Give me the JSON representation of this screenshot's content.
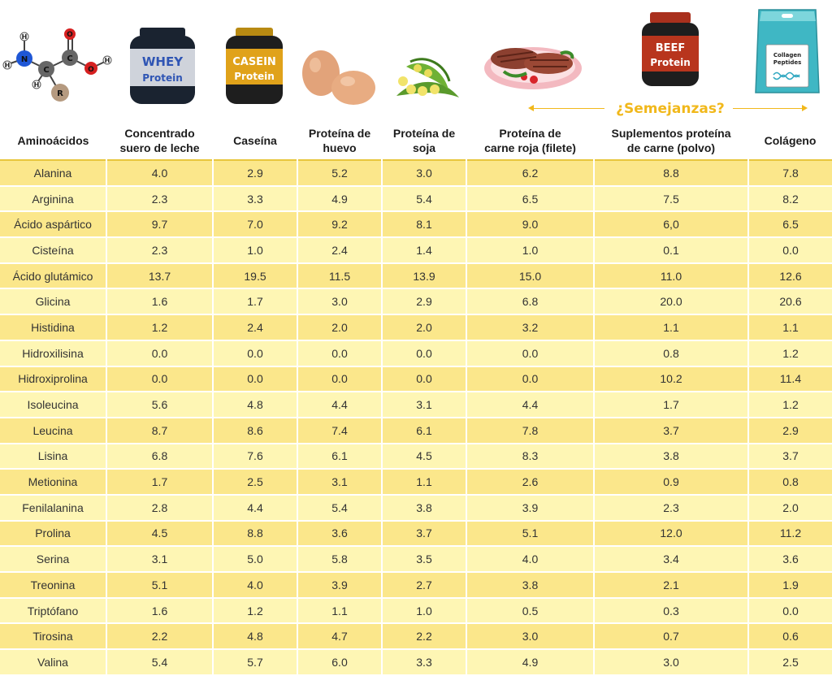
{
  "labels": {
    "whey_jar": [
      "WHEY",
      "Protein"
    ],
    "casein_jar": [
      "CASEIN",
      "Protein"
    ],
    "beef_jar": [
      "BEEF",
      "Protein"
    ],
    "collagen_bag": [
      "Collagen",
      "Peptides"
    ],
    "molecule": [
      "H",
      "N",
      "H",
      "C",
      "H",
      "R",
      "O",
      "C",
      "O",
      "H"
    ],
    "similarities": "¿Semejanzas?"
  },
  "colors": {
    "highlight": "#f1b81b",
    "row_dark": "#fbe78b",
    "row_light": "#fef6b4"
  },
  "chart_data": {
    "type": "table",
    "columns": [
      "Aminoácidos",
      "Concentrado suero de leche",
      "Caseína",
      "Proteína de huevo",
      "Proteína de soja",
      "Proteína de carne roja (filete)",
      "Suplementos proteína de carne (polvo)",
      "Colágeno"
    ],
    "rows": [
      [
        "Alanina",
        "4.0",
        "2.9",
        "5.2",
        "3.0",
        "6.2",
        "8.8",
        "7.8"
      ],
      [
        "Arginina",
        "2.3",
        "3.3",
        "4.9",
        "5.4",
        "6.5",
        "7.5",
        "8.2"
      ],
      [
        "Ácido aspártico",
        "9.7",
        "7.0",
        "9.2",
        "8.1",
        "9.0",
        "6,0",
        "6.5"
      ],
      [
        "Cisteína",
        "2.3",
        "1.0",
        "2.4",
        "1.4",
        "1.0",
        "0.1",
        "0.0"
      ],
      [
        "Ácido glutámico",
        "13.7",
        "19.5",
        "11.5",
        "13.9",
        "15.0",
        "11.0",
        "12.6"
      ],
      [
        "Glicina",
        "1.6",
        "1.7",
        "3.0",
        "2.9",
        "6.8",
        "20.0",
        "20.6"
      ],
      [
        "Histidina",
        "1.2",
        "2.4",
        "2.0",
        "2.0",
        "3.2",
        "1.1",
        "1.1"
      ],
      [
        "Hidroxilisina",
        "0.0",
        "0.0",
        "0.0",
        "0.0",
        "0.0",
        "0.8",
        "1.2"
      ],
      [
        "Hidroxiprolina",
        "0.0",
        "0.0",
        "0.0",
        "0.0",
        "0.0",
        "10.2",
        "11.4"
      ],
      [
        "Isoleucina",
        "5.6",
        "4.8",
        "4.4",
        "3.1",
        "4.4",
        "1.7",
        "1.2"
      ],
      [
        "Leucina",
        "8.7",
        "8.6",
        "7.4",
        "6.1",
        "7.8",
        "3.7",
        "2.9"
      ],
      [
        "Lisina",
        "6.8",
        "7.6",
        "6.1",
        "4.5",
        "8.3",
        "3.8",
        "3.7"
      ],
      [
        "Metionina",
        "1.7",
        "2.5",
        "3.1",
        "1.1",
        "2.6",
        "0.9",
        "0.8"
      ],
      [
        "Fenilalanina",
        "2.8",
        "4.4",
        "5.4",
        "3.8",
        "3.9",
        "2.3",
        "2.0"
      ],
      [
        "Prolina",
        "4.5",
        "8.8",
        "3.6",
        "3.7",
        "5.1",
        "12.0",
        "11.2"
      ],
      [
        "Serina",
        "3.1",
        "5.0",
        "5.8",
        "3.5",
        "4.0",
        "3.4",
        "3.6"
      ],
      [
        "Treonina",
        "5.1",
        "4.0",
        "3.9",
        "2.7",
        "3.8",
        "2.1",
        "1.9"
      ],
      [
        "Triptófano",
        "1.6",
        "1.2",
        "1.1",
        "1.0",
        "0.5",
        "0.3",
        "0.0"
      ],
      [
        "Tirosina",
        "2.2",
        "4.8",
        "4.7",
        "2.2",
        "3.0",
        "0.7",
        "0.6"
      ],
      [
        "Valina",
        "5.4",
        "5.7",
        "6.0",
        "3.3",
        "4.9",
        "3.0",
        "2.5"
      ]
    ]
  }
}
